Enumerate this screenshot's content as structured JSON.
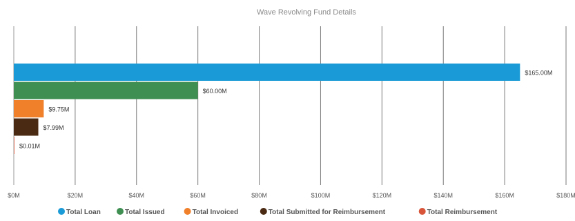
{
  "chart_data": {
    "type": "bar",
    "orientation": "horizontal",
    "title": "Wave Revolving Fund Details",
    "xlabel": "",
    "ylabel": "",
    "xlim": [
      0,
      180
    ],
    "x_ticks": [
      0,
      20,
      40,
      60,
      80,
      100,
      120,
      140,
      160,
      180
    ],
    "x_tick_labels": [
      "$0M",
      "$20M",
      "$40M",
      "$60M",
      "$80M",
      "$100M",
      "$120M",
      "$140M",
      "$160M",
      "$180M"
    ],
    "grid": true,
    "legend_position": "bottom",
    "series": [
      {
        "name": "Total Loan",
        "value": 165.0,
        "label": "$165.00M",
        "color": "#1a9bd7"
      },
      {
        "name": "Total Issued",
        "value": 60.0,
        "label": "$60.00M",
        "color": "#3f8f52"
      },
      {
        "name": "Total Invoiced",
        "value": 9.75,
        "label": "$9.75M",
        "color": "#f0802a"
      },
      {
        "name": "Total Submitted for Reimbursement",
        "value": 7.99,
        "label": "$7.99M",
        "color": "#4a2a12"
      },
      {
        "name": "Total Reimbursement",
        "value": 0.01,
        "label": "$0.01M",
        "color": "#d9553a"
      }
    ]
  }
}
